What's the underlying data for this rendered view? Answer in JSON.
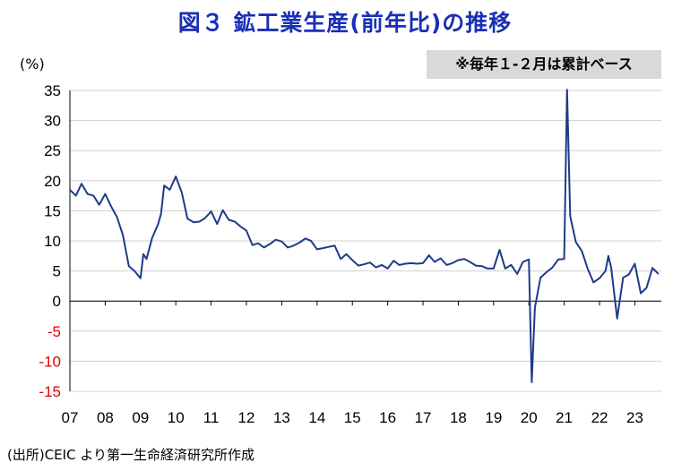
{
  "title": "図３ 鉱工業生産(前年比)の推移",
  "unit_label": "(%)",
  "note": "※毎年１-２月は累計ベース",
  "source": "(出所)CEIC より第一生命経済研究所作成",
  "colors": {
    "title": "#1a2fb8",
    "line": "#1f3a8a",
    "negative_tick": "#e00000",
    "axis": "#000000",
    "note_bg": "#d9d9d9"
  },
  "chart_data": {
    "type": "line",
    "ylabel": "(%)",
    "ylim": [
      -15,
      35
    ],
    "yticks": [
      35,
      30,
      25,
      20,
      15,
      10,
      5,
      0,
      -5,
      -10,
      -15
    ],
    "xlim": [
      2007.0,
      2023.75
    ],
    "xtick_labels": [
      "07",
      "08",
      "09",
      "10",
      "11",
      "12",
      "13",
      "14",
      "15",
      "16",
      "17",
      "18",
      "19",
      "20",
      "21",
      "22",
      "23"
    ],
    "grid": true,
    "series": [
      {
        "x": [
          2007.0,
          2007.17,
          2007.33,
          2007.5,
          2007.67,
          2007.83,
          2008.0,
          2008.17,
          2008.33,
          2008.5,
          2008.67,
          2008.83,
          2009.0,
          2009.08,
          2009.17,
          2009.33,
          2009.5,
          2009.58,
          2009.67,
          2009.83,
          2010.0,
          2010.17,
          2010.33,
          2010.5,
          2010.67,
          2010.83,
          2011.0,
          2011.17,
          2011.33,
          2011.5,
          2011.67,
          2011.83,
          2012.0,
          2012.17,
          2012.33,
          2012.5,
          2012.67,
          2012.83,
          2013.0,
          2013.17,
          2013.33,
          2013.5,
          2013.67,
          2013.83,
          2014.0,
          2014.17,
          2014.33,
          2014.5,
          2014.67,
          2014.83,
          2015.0,
          2015.17,
          2015.33,
          2015.5,
          2015.67,
          2015.83,
          2016.0,
          2016.17,
          2016.33,
          2016.5,
          2016.67,
          2016.83,
          2017.0,
          2017.17,
          2017.33,
          2017.5,
          2017.67,
          2017.83,
          2018.0,
          2018.17,
          2018.33,
          2018.5,
          2018.67,
          2018.83,
          2019.0,
          2019.17,
          2019.33,
          2019.5,
          2019.67,
          2019.83,
          2020.0,
          2020.08,
          2020.17,
          2020.33,
          2020.5,
          2020.67,
          2020.83,
          2021.0,
          2021.08,
          2021.17,
          2021.33,
          2021.5,
          2021.67,
          2021.83,
          2022.0,
          2022.17,
          2022.25,
          2022.33,
          2022.5,
          2022.67,
          2022.83,
          2023.0,
          2023.17,
          2023.33,
          2023.5,
          2023.67
        ],
        "y": [
          18.5,
          17.5,
          19.5,
          17.8,
          17.5,
          16.0,
          17.8,
          15.7,
          14.0,
          11.0,
          5.8,
          5.0,
          3.8,
          7.8,
          7.0,
          10.5,
          12.8,
          14.5,
          19.2,
          18.5,
          20.7,
          18.0,
          13.7,
          13.1,
          13.2,
          13.8,
          14.9,
          12.8,
          15.1,
          13.5,
          13.2,
          12.4,
          11.7,
          9.3,
          9.6,
          8.9,
          9.5,
          10.2,
          9.9,
          8.9,
          9.2,
          9.7,
          10.4,
          10.0,
          8.6,
          8.8,
          9.0,
          9.2,
          7.0,
          7.8,
          6.8,
          5.9,
          6.1,
          6.4,
          5.6,
          6.0,
          5.4,
          6.7,
          6.0,
          6.2,
          6.3,
          6.2,
          6.3,
          7.6,
          6.5,
          7.1,
          6.0,
          6.3,
          6.8,
          7.0,
          6.5,
          5.9,
          5.8,
          5.4,
          5.4,
          8.5,
          5.4,
          6.0,
          4.5,
          6.5,
          6.9,
          -13.5,
          -1.1,
          3.9,
          4.8,
          5.6,
          6.9,
          7.0,
          35.1,
          14.1,
          9.8,
          8.3,
          5.3,
          3.1,
          3.8,
          5.0,
          7.5,
          5.6,
          -2.9,
          3.9,
          4.4,
          6.2,
          1.3,
          2.2,
          5.5,
          4.5
        ]
      }
    ]
  }
}
